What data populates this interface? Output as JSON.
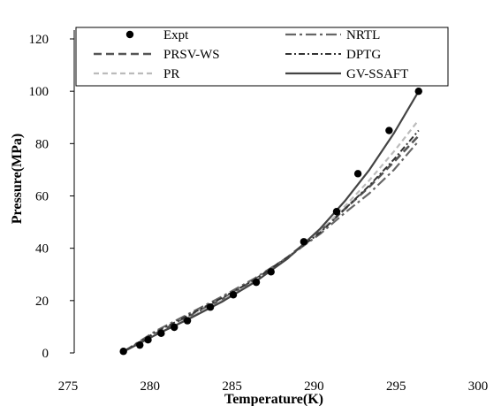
{
  "chart_data": {
    "type": "scatter",
    "title": "",
    "xlabel": "Temperature(K)",
    "ylabel": "Pressure(MPa)",
    "xlim": [
      275,
      300
    ],
    "ylim": [
      0,
      120
    ],
    "x_ticks": [
      "275",
      "280",
      "285",
      "290",
      "295",
      "300"
    ],
    "y_ticks": [
      "0",
      "20",
      "40",
      "60",
      "80",
      "100",
      "120"
    ],
    "grid": false,
    "legend_position": "top",
    "series": [
      {
        "name": "Expt",
        "style": "markers",
        "color": "#000000",
        "x": [
          278.0,
          279.0,
          279.5,
          280.3,
          281.1,
          281.9,
          283.3,
          284.7,
          286.1,
          287.0,
          289.0,
          291.0,
          292.3,
          294.2,
          296.0
        ],
        "y": [
          0.6,
          3.0,
          5.0,
          7.5,
          9.8,
          12.3,
          17.5,
          22.2,
          27.0,
          31.0,
          42.5,
          54.0,
          68.5,
          85.0,
          100.0
        ]
      },
      {
        "name": "PRSV-WS",
        "style": "dashed",
        "color": "#555555",
        "x": [
          278.0,
          280.0,
          282.0,
          284.0,
          286.0,
          288.0,
          290.0,
          291.5,
          293.0,
          294.5,
          296.0
        ],
        "y": [
          0.5,
          7.5,
          14.0,
          20.5,
          28.0,
          36.5,
          46.5,
          55.0,
          63.5,
          73.0,
          83.0
        ]
      },
      {
        "name": "PR",
        "style": "dashed-light",
        "color": "#bbbbbb",
        "x": [
          278.0,
          280.0,
          282.0,
          284.0,
          286.0,
          288.0,
          290.0,
          291.5,
          293.0,
          294.5,
          296.0
        ],
        "y": [
          0.5,
          7.0,
          13.5,
          20.0,
          27.5,
          36.0,
          46.5,
          56.0,
          66.0,
          77.0,
          89.0
        ]
      },
      {
        "name": "NRTL",
        "style": "dash-dot",
        "color": "#666666",
        "x": [
          278.0,
          280.0,
          282.0,
          284.0,
          286.0,
          288.0,
          290.0,
          291.5,
          293.0,
          294.5,
          296.0
        ],
        "y": [
          0.5,
          8.5,
          15.0,
          21.5,
          28.5,
          36.5,
          45.5,
          53.5,
          61.0,
          70.0,
          81.0
        ]
      },
      {
        "name": "DPTG",
        "style": "dash-dot-dark",
        "color": "#333333",
        "x": [
          278.0,
          280.0,
          282.0,
          284.0,
          286.0,
          288.0,
          290.0,
          291.5,
          293.0,
          294.5,
          296.0
        ],
        "y": [
          0.5,
          8.0,
          14.5,
          21.0,
          28.0,
          36.5,
          46.0,
          55.0,
          64.0,
          74.0,
          85.0
        ]
      },
      {
        "name": "GV-SSAFT",
        "style": "solid",
        "color": "#444444",
        "x": [
          278.0,
          280.0,
          282.0,
          284.0,
          286.0,
          288.0,
          290.0,
          291.5,
          293.0,
          294.5,
          296.0
        ],
        "y": [
          0.5,
          7.0,
          13.0,
          19.5,
          27.0,
          36.0,
          47.5,
          58.0,
          70.0,
          84.0,
          100.0
        ]
      }
    ]
  }
}
